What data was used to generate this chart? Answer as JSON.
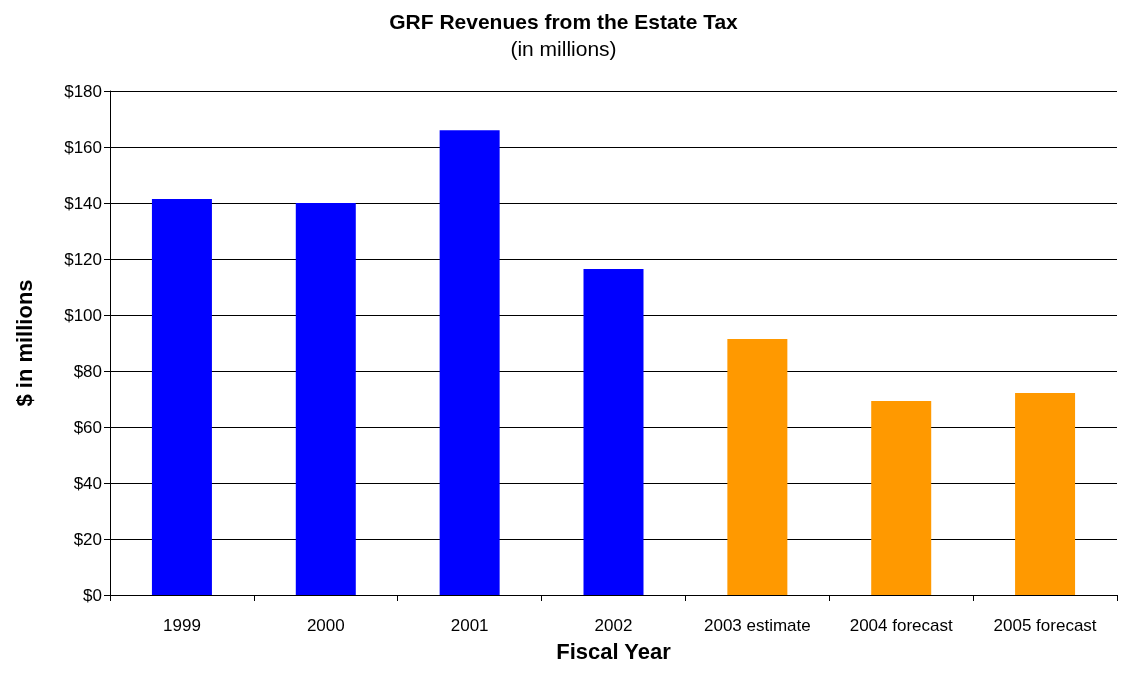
{
  "chart_data": {
    "type": "bar",
    "title": "GRF Revenues from the Estate Tax",
    "subtitle": "(in millions)",
    "xlabel": "Fiscal Year",
    "ylabel": "$ in millions",
    "categories": [
      "1999",
      "2000",
      "2001",
      "2002",
      "2003 estimate",
      "2004 forecast",
      "2005 forecast"
    ],
    "values": [
      141.4,
      140,
      166,
      116.4,
      91.4,
      69.3,
      72.1
    ],
    "colors": [
      "#0000ff",
      "#0000ff",
      "#0000ff",
      "#0000ff",
      "#ff9900",
      "#ff9900",
      "#ff9900"
    ],
    "ylim": [
      0,
      180
    ],
    "yticks": [
      {
        "value": 0,
        "label": "$0"
      },
      {
        "value": 20,
        "label": "$20"
      },
      {
        "value": 40,
        "label": "$40"
      },
      {
        "value": 60,
        "label": "$60"
      },
      {
        "value": 80,
        "label": "$80"
      },
      {
        "value": 100,
        "label": "$100"
      },
      {
        "value": 120,
        "label": "$120"
      },
      {
        "value": 140,
        "label": "$140"
      },
      {
        "value": 160,
        "label": "$160"
      },
      {
        "value": 180,
        "label": "$180"
      }
    ],
    "grid": "y"
  }
}
